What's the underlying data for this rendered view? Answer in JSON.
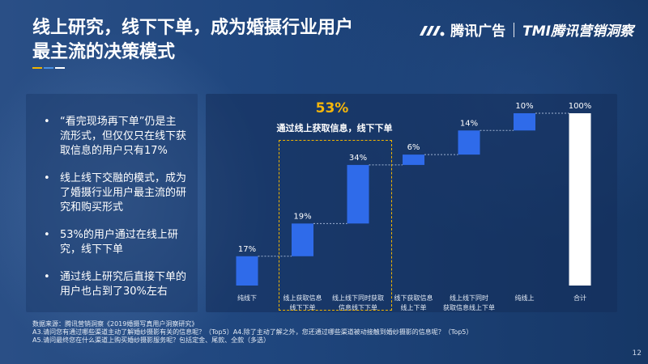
{
  "slide": {
    "title_line1": "线上研究，线下下单，成为婚摄行业用户",
    "title_line2": "最主流的决策模式",
    "page_number": "12"
  },
  "brand": {
    "name": "腾讯广告",
    "sub": "TMI腾讯营销洞察"
  },
  "bullets": [
    "“看完现场再下单”仍是主流形式，但仅仅只在线下获取信息的用户只有17%",
    "线上线下交融的模式，成为了婚摄行业用户最主流的研究和购买形式",
    "53%的用户通过在线上研究，线下下单",
    "通过线上研究后直接下单的用户也占到了30%左右"
  ],
  "highlight": {
    "value": "53%",
    "label": "通过线上获取信息，线下下单"
  },
  "footnote": {
    "source": "数据来源：腾讯营销洞察《2019婚摄写真用户洞察研究》",
    "q_a3": "A3.请问您有通过哪些渠道主动了解婚纱摄影有关的信息呢？（Top5）A4.除了主动了解之外，您还通过哪些渠道被动接触到婚纱摄影的信息呢？（Top5）",
    "q_a5": "A5.请问最终您在什么渠道上购买婚纱摄影服务呢？包括定金、尾款、全款（多选）"
  },
  "colors": {
    "bar": "#2f6bea",
    "total_bar": "#ffffff",
    "highlight": "#f0b400",
    "accent_yellow": "#f0b400",
    "accent_blue": "#4a90e2"
  },
  "chart_data": {
    "type": "bar",
    "subtype": "waterfall",
    "categories": [
      "纯线下",
      "线上获取信息\n线下下单",
      "线上线下同时获取\n信息线下下单",
      "线下获取信息\n线上下单",
      "线上线下同时\n获取信息线上下单",
      "纯线上",
      "合计"
    ],
    "values": [
      17,
      19,
      34,
      6,
      14,
      10,
      100
    ],
    "value_labels": [
      "17%",
      "19%",
      "34%",
      "6%",
      "14%",
      "10%",
      "100%"
    ],
    "total_index": 6,
    "ylim": [
      0,
      100
    ],
    "grid": false,
    "legend": "none"
  }
}
